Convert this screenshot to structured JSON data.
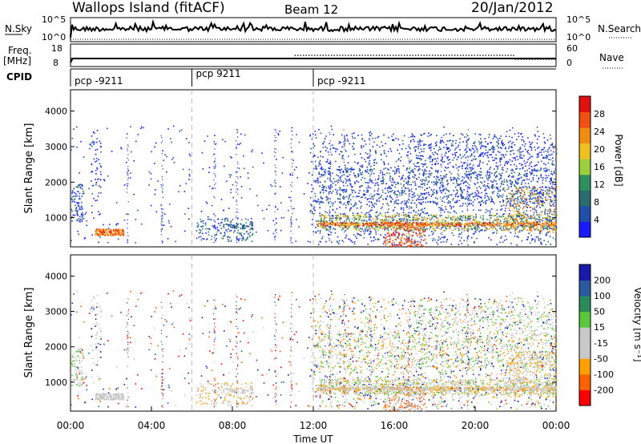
{
  "header": {
    "site": "Wallops Island (fitACF)",
    "beam": "Beam 12",
    "date": "20/Jan/2012"
  },
  "colors": {
    "power": [
      "#1a1aff",
      "#1f4fa8",
      "#2a6b6b",
      "#2f8f5f",
      "#9ccf3f",
      "#f0c020",
      "#f08c10",
      "#f05010",
      "#e01010"
    ],
    "velocity": [
      "#ff0000",
      "#ff6000",
      "#ffa000",
      "#c8c8c8",
      "#c8c8c8",
      "#5ac83c",
      "#2a8a5a",
      "#2a5aa0",
      "#1a1aaa"
    ]
  },
  "chart_data": [
    {
      "panel": "noise",
      "type": "line",
      "left_label": "N.Sky",
      "right_label": "N.Search",
      "left_ticks": [
        "10^5",
        "10^0"
      ],
      "right_ticks": [
        "10^5",
        "10^0"
      ]
    },
    {
      "panel": "frequency",
      "type": "line",
      "left_label": "Freq.",
      "left_unit": "[MHz]",
      "right_label": "Nave",
      "left_ticks": [
        "18",
        "8"
      ],
      "right_ticks": [
        "60",
        "0"
      ]
    },
    {
      "panel": "cpid",
      "label": "CPID",
      "segments": [
        {
          "start_hour": 0,
          "text": "pcp -9211"
        },
        {
          "start_hour": 6,
          "text": "pcp 9211"
        },
        {
          "start_hour": 12,
          "text": "pcp -9211"
        }
      ]
    },
    {
      "panel": "power",
      "type": "heatmap",
      "ylabel": "Slant Range [km]",
      "ylim": [
        180,
        4600
      ],
      "yticks": [
        1000,
        2000,
        3000,
        4000
      ],
      "xlim": [
        0,
        24
      ],
      "colorbar": {
        "label": "Power [dB]",
        "ticks": [
          "4",
          "8",
          "12",
          "16",
          "20",
          "24",
          "28"
        ]
      }
    },
    {
      "panel": "velocity",
      "type": "heatmap",
      "ylabel": "Slant Range [km]",
      "ylim": [
        180,
        4600
      ],
      "yticks": [
        1000,
        2000,
        3000,
        4000
      ],
      "xlim": [
        0,
        24
      ],
      "xlabel": "Time UT",
      "xticks": [
        "00:00",
        "04:00",
        "08:00",
        "12:00",
        "16:00",
        "20:00",
        "00:00"
      ],
      "colorbar": {
        "label": "Velocity [m s⁻¹]",
        "ticks": [
          "-200",
          "-100",
          "-50",
          "-15",
          "15",
          "50",
          "100",
          "200"
        ]
      }
    }
  ]
}
